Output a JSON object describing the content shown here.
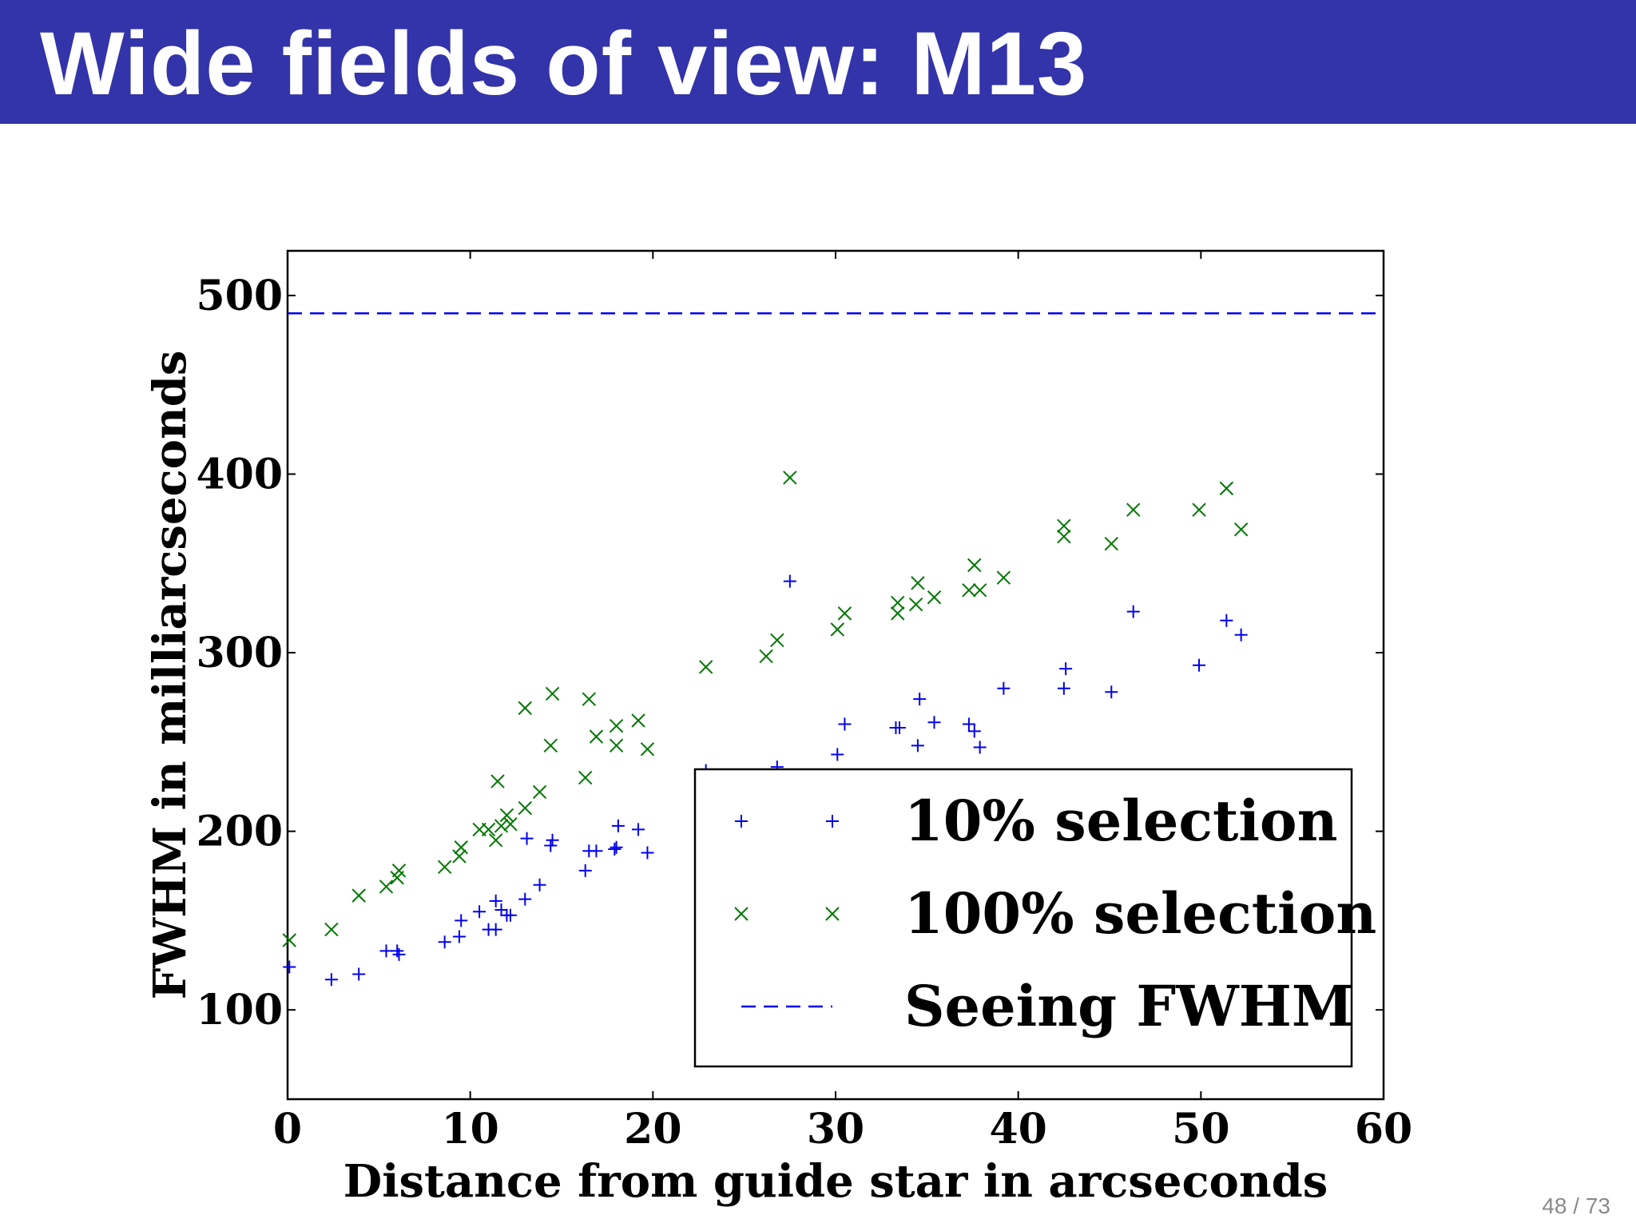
{
  "slide": {
    "title": "Wide fields of view: M13",
    "page_label": "48 / 73"
  },
  "colors": {
    "title_bg": "#3333aa",
    "title_fg": "#ffffff",
    "series_10": "#0000ee",
    "series_100": "#007700",
    "seeing": "#0000ee"
  },
  "chart_data": {
    "type": "scatter",
    "title": "",
    "xlabel": "Distance from guide star in arcseconds",
    "ylabel": "FWHM in milliarcseconds",
    "xlim": [
      0,
      60
    ],
    "ylim": [
      50,
      525
    ],
    "xticks": [
      0,
      10,
      20,
      30,
      40,
      50,
      60
    ],
    "yticks": [
      100,
      200,
      300,
      400,
      500
    ],
    "grid": false,
    "legend_position": "lower-right",
    "series": [
      {
        "name": "10% selection",
        "marker": "plus",
        "color": "#0000ee",
        "points": [
          [
            0.1,
            124
          ],
          [
            2.4,
            117
          ],
          [
            3.9,
            120
          ],
          [
            5.4,
            133
          ],
          [
            6.0,
            133
          ],
          [
            6.1,
            131
          ],
          [
            8.6,
            138
          ],
          [
            9.4,
            141
          ],
          [
            9.5,
            150
          ],
          [
            10.5,
            155
          ],
          [
            11.0,
            145
          ],
          [
            11.4,
            145
          ],
          [
            11.4,
            161
          ],
          [
            11.7,
            156
          ],
          [
            12.0,
            153
          ],
          [
            12.2,
            153
          ],
          [
            13.0,
            162
          ],
          [
            13.1,
            196
          ],
          [
            13.8,
            170
          ],
          [
            14.4,
            192
          ],
          [
            14.5,
            195
          ],
          [
            16.3,
            178
          ],
          [
            16.5,
            189
          ],
          [
            16.9,
            189
          ],
          [
            17.9,
            190
          ],
          [
            18.0,
            191
          ],
          [
            18.1,
            203
          ],
          [
            19.2,
            201
          ],
          [
            19.7,
            188
          ],
          [
            22.9,
            234
          ],
          [
            26.8,
            236
          ],
          [
            27.5,
            340
          ],
          [
            30.1,
            243
          ],
          [
            30.5,
            260
          ],
          [
            33.3,
            258
          ],
          [
            33.5,
            258
          ],
          [
            34.5,
            248
          ],
          [
            34.6,
            274
          ],
          [
            35.4,
            261
          ],
          [
            37.3,
            260
          ],
          [
            37.6,
            256
          ],
          [
            37.9,
            247
          ],
          [
            39.2,
            280
          ],
          [
            42.5,
            280
          ],
          [
            42.6,
            291
          ],
          [
            45.1,
            278
          ],
          [
            46.3,
            323
          ],
          [
            49.9,
            293
          ],
          [
            51.4,
            318
          ],
          [
            52.2,
            310
          ]
        ]
      },
      {
        "name": "100% selection",
        "marker": "x",
        "color": "#007700",
        "points": [
          [
            0.1,
            139
          ],
          [
            2.4,
            145
          ],
          [
            3.9,
            164
          ],
          [
            5.4,
            169
          ],
          [
            6.0,
            174
          ],
          [
            6.1,
            178
          ],
          [
            8.6,
            180
          ],
          [
            9.4,
            186
          ],
          [
            9.5,
            191
          ],
          [
            10.5,
            201
          ],
          [
            11.0,
            201
          ],
          [
            11.4,
            195
          ],
          [
            11.5,
            228
          ],
          [
            11.7,
            203
          ],
          [
            12.0,
            209
          ],
          [
            12.2,
            204
          ],
          [
            13.0,
            213
          ],
          [
            13.0,
            269
          ],
          [
            13.8,
            222
          ],
          [
            14.4,
            248
          ],
          [
            14.5,
            277
          ],
          [
            16.3,
            230
          ],
          [
            16.5,
            274
          ],
          [
            16.9,
            253
          ],
          [
            18.0,
            248
          ],
          [
            18.0,
            259
          ],
          [
            19.2,
            262
          ],
          [
            19.7,
            246
          ],
          [
            22.9,
            292
          ],
          [
            26.2,
            298
          ],
          [
            26.8,
            307
          ],
          [
            27.5,
            398
          ],
          [
            30.1,
            313
          ],
          [
            30.5,
            322
          ],
          [
            33.4,
            322
          ],
          [
            33.4,
            328
          ],
          [
            34.4,
            327
          ],
          [
            34.5,
            339
          ],
          [
            35.4,
            331
          ],
          [
            37.3,
            335
          ],
          [
            37.6,
            349
          ],
          [
            37.9,
            335
          ],
          [
            39.2,
            342
          ],
          [
            42.5,
            365
          ],
          [
            42.5,
            371
          ],
          [
            45.1,
            361
          ],
          [
            46.3,
            380
          ],
          [
            49.9,
            380
          ],
          [
            51.4,
            392
          ],
          [
            52.2,
            369
          ]
        ]
      }
    ],
    "reference_lines": [
      {
        "name": "Seeing FWHM",
        "orientation": "horizontal",
        "y": 490,
        "style": "dashed",
        "color": "#0000ee"
      }
    ]
  }
}
